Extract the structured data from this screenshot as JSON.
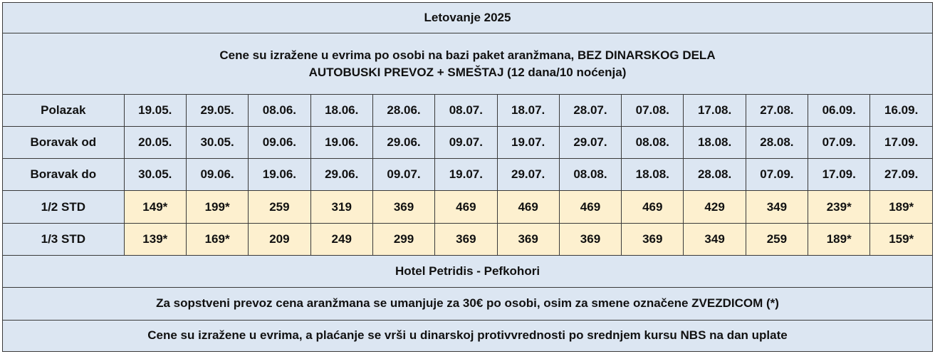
{
  "title": "Letovanje 2025",
  "subtitle_lines": [
    "Cene su izražene u evrima po osobi na bazi paket aranžmana, BEZ DINARSKOG DELA",
    "AUTOBUSKI PREVOZ + SMEŠTAJ (12 dana/10 noćenja)"
  ],
  "rows": [
    {
      "label": "Polazak",
      "cells": [
        "19.05.",
        "29.05.",
        "08.06.",
        "18.06.",
        "28.06.",
        "08.07.",
        "18.07.",
        "28.07.",
        "07.08.",
        "17.08.",
        "27.08.",
        "06.09.",
        "16.09."
      ],
      "is_price": false
    },
    {
      "label": "Boravak od",
      "cells": [
        "20.05.",
        "30.05.",
        "09.06.",
        "19.06.",
        "29.06.",
        "09.07.",
        "19.07.",
        "29.07.",
        "08.08.",
        "18.08.",
        "28.08.",
        "07.09.",
        "17.09."
      ],
      "is_price": false
    },
    {
      "label": "Boravak do",
      "cells": [
        "30.05.",
        "09.06.",
        "19.06.",
        "29.06.",
        "09.07.",
        "19.07.",
        "29.07.",
        "08.08.",
        "18.08.",
        "28.08.",
        "07.09.",
        "17.09.",
        "27.09."
      ],
      "is_price": false
    },
    {
      "label": "1/2 STD",
      "cells": [
        "149*",
        "199*",
        "259",
        "319",
        "369",
        "469",
        "469",
        "469",
        "469",
        "429",
        "349",
        "239*",
        "189*"
      ],
      "is_price": true
    },
    {
      "label": "1/3 STD",
      "cells": [
        "139*",
        "169*",
        "209",
        "249",
        "299",
        "369",
        "369",
        "369",
        "369",
        "349",
        "259",
        "189*",
        "159*"
      ],
      "is_price": true
    }
  ],
  "hotel": "Hotel Petridis - Pefkohori",
  "notes": [
    "Za sopstveni prevoz cena aranžmana se umanjuje za 30€ po osobi, osim za smene označene ZVEZDICOM (*)",
    "Cene su izražene u evrima, a plaćanje se vrši u dinarskoj protivvrednosti po srednjem kursu NBS na dan uplate"
  ],
  "colors": {
    "cell_background": "#dce6f2",
    "price_background": "#fdf0cf",
    "border": "#3a3a3a",
    "text": "#111111"
  }
}
